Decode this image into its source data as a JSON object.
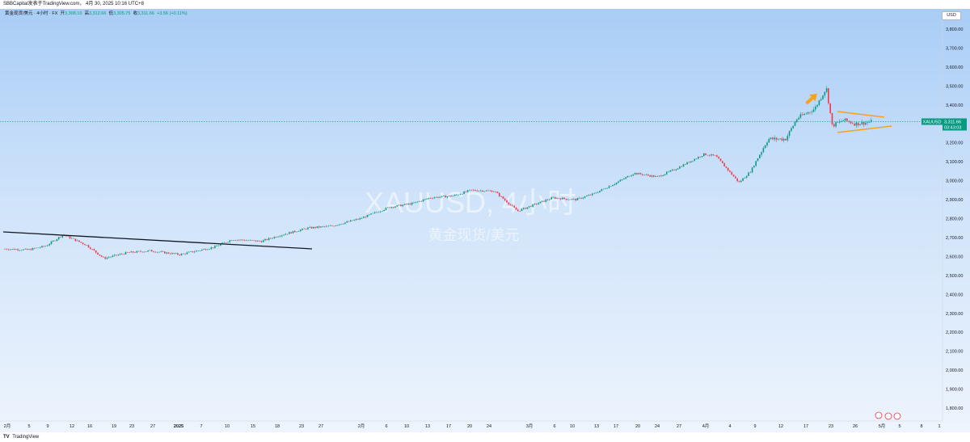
{
  "header": {
    "attribution": "SBBCapital发表于TradingView.com，  4月 30, 2025 10:16 UTC+8"
  },
  "legend": {
    "symbol": "黄金现货/美元 · 4小时 · FX",
    "open_label": "开",
    "open": "3,308.10",
    "high_label": "高",
    "high": "3,312.66",
    "low_label": "低",
    "low": "3,305.75",
    "close_label": "收",
    "close": "3,311.66",
    "change": "+3.56 (+0.11%)"
  },
  "currency_badge": "USD",
  "watermark": {
    "symbol": "XAUUSD, 4小时",
    "name": "黄金现货/美元"
  },
  "price_tag": {
    "symbol": "XAUUSD",
    "price": "3,311.66",
    "countdown": "03:43:03"
  },
  "footer": {
    "brand_icon": "tradingview-logo-icon",
    "brand": "TradingView"
  },
  "colors": {
    "up": "#089981",
    "down": "#f23645",
    "trendline": "#131722",
    "triangle": "#f7a21b",
    "price_line": "#089981"
  },
  "chart_data": {
    "type": "candlestick",
    "symbol": "XAUUSD",
    "interval": "4小时",
    "y_axis_position": "right",
    "ylim": [
      1700,
      3900
    ],
    "y_ticks": [
      "1,800.00",
      "1,900.00",
      "2,000.00",
      "2,100.00",
      "2,200.00",
      "2,300.00",
      "2,400.00",
      "2,500.00",
      "2,600.00",
      "2,700.00",
      "2,800.00",
      "2,900.00",
      "3,000.00",
      "3,100.00",
      "3,200.00",
      "3,300.00",
      "3,400.00",
      "3,500.00",
      "3,600.00",
      "3,700.00",
      "3,800.00"
    ],
    "y_tick_values": [
      1800,
      1900,
      2000,
      2100,
      2200,
      2300,
      2400,
      2500,
      2600,
      2700,
      2800,
      2900,
      3000,
      3100,
      3200,
      3300,
      3400,
      3500,
      3600,
      3700,
      3800
    ],
    "x_ticks": [
      "2月",
      "5",
      "9",
      "12",
      "16",
      "19",
      "23",
      "27",
      "2025",
      "7",
      "10",
      "15",
      "18",
      "23",
      "27",
      "2月",
      "6",
      "10",
      "13",
      "17",
      "20",
      "24",
      "3月",
      "6",
      "10",
      "13",
      "17",
      "20",
      "24",
      "27",
      "4月",
      "4",
      "9",
      "12",
      "17",
      "23",
      "26",
      "5月",
      "5",
      "8",
      "1"
    ],
    "price_trajectory": [
      {
        "date": "2024-12-02",
        "price": 2640
      },
      {
        "date": "2024-12-06",
        "price": 2635
      },
      {
        "date": "2024-12-09",
        "price": 2655
      },
      {
        "date": "2024-12-12",
        "price": 2715
      },
      {
        "date": "2024-12-16",
        "price": 2660
      },
      {
        "date": "2024-12-19",
        "price": 2590
      },
      {
        "date": "2024-12-23",
        "price": 2620
      },
      {
        "date": "2024-12-27",
        "price": 2630
      },
      {
        "date": "2025-01-01",
        "price": 2610
      },
      {
        "date": "2025-01-07",
        "price": 2650
      },
      {
        "date": "2025-01-10",
        "price": 2690
      },
      {
        "date": "2025-01-15",
        "price": 2680
      },
      {
        "date": "2025-01-18",
        "price": 2710
      },
      {
        "date": "2025-01-23",
        "price": 2750
      },
      {
        "date": "2025-01-27",
        "price": 2760
      },
      {
        "date": "2025-02-01",
        "price": 2800
      },
      {
        "date": "2025-02-06",
        "price": 2860
      },
      {
        "date": "2025-02-10",
        "price": 2880
      },
      {
        "date": "2025-02-13",
        "price": 2910
      },
      {
        "date": "2025-02-17",
        "price": 2920
      },
      {
        "date": "2025-02-20",
        "price": 2950
      },
      {
        "date": "2025-02-24",
        "price": 2945
      },
      {
        "date": "2025-02-28",
        "price": 2840
      },
      {
        "date": "2025-03-06",
        "price": 2910
      },
      {
        "date": "2025-03-10",
        "price": 2900
      },
      {
        "date": "2025-03-13",
        "price": 2930
      },
      {
        "date": "2025-03-17",
        "price": 2990
      },
      {
        "date": "2025-03-20",
        "price": 3040
      },
      {
        "date": "2025-03-24",
        "price": 3020
      },
      {
        "date": "2025-03-27",
        "price": 3060
      },
      {
        "date": "2025-04-01",
        "price": 3140
      },
      {
        "date": "2025-04-03",
        "price": 3130
      },
      {
        "date": "2025-04-07",
        "price": 2990
      },
      {
        "date": "2025-04-09",
        "price": 3050
      },
      {
        "date": "2025-04-12",
        "price": 3220
      },
      {
        "date": "2025-04-15",
        "price": 3220
      },
      {
        "date": "2025-04-17",
        "price": 3330
      },
      {
        "date": "2025-04-20",
        "price": 3380
      },
      {
        "date": "2025-04-22",
        "price": 3490
      },
      {
        "date": "2025-04-23",
        "price": 3290
      },
      {
        "date": "2025-04-25",
        "price": 3320
      },
      {
        "date": "2025-04-27",
        "price": 3300
      },
      {
        "date": "2025-04-30",
        "price": 3311.66
      }
    ],
    "last_price": 3311.66
  }
}
